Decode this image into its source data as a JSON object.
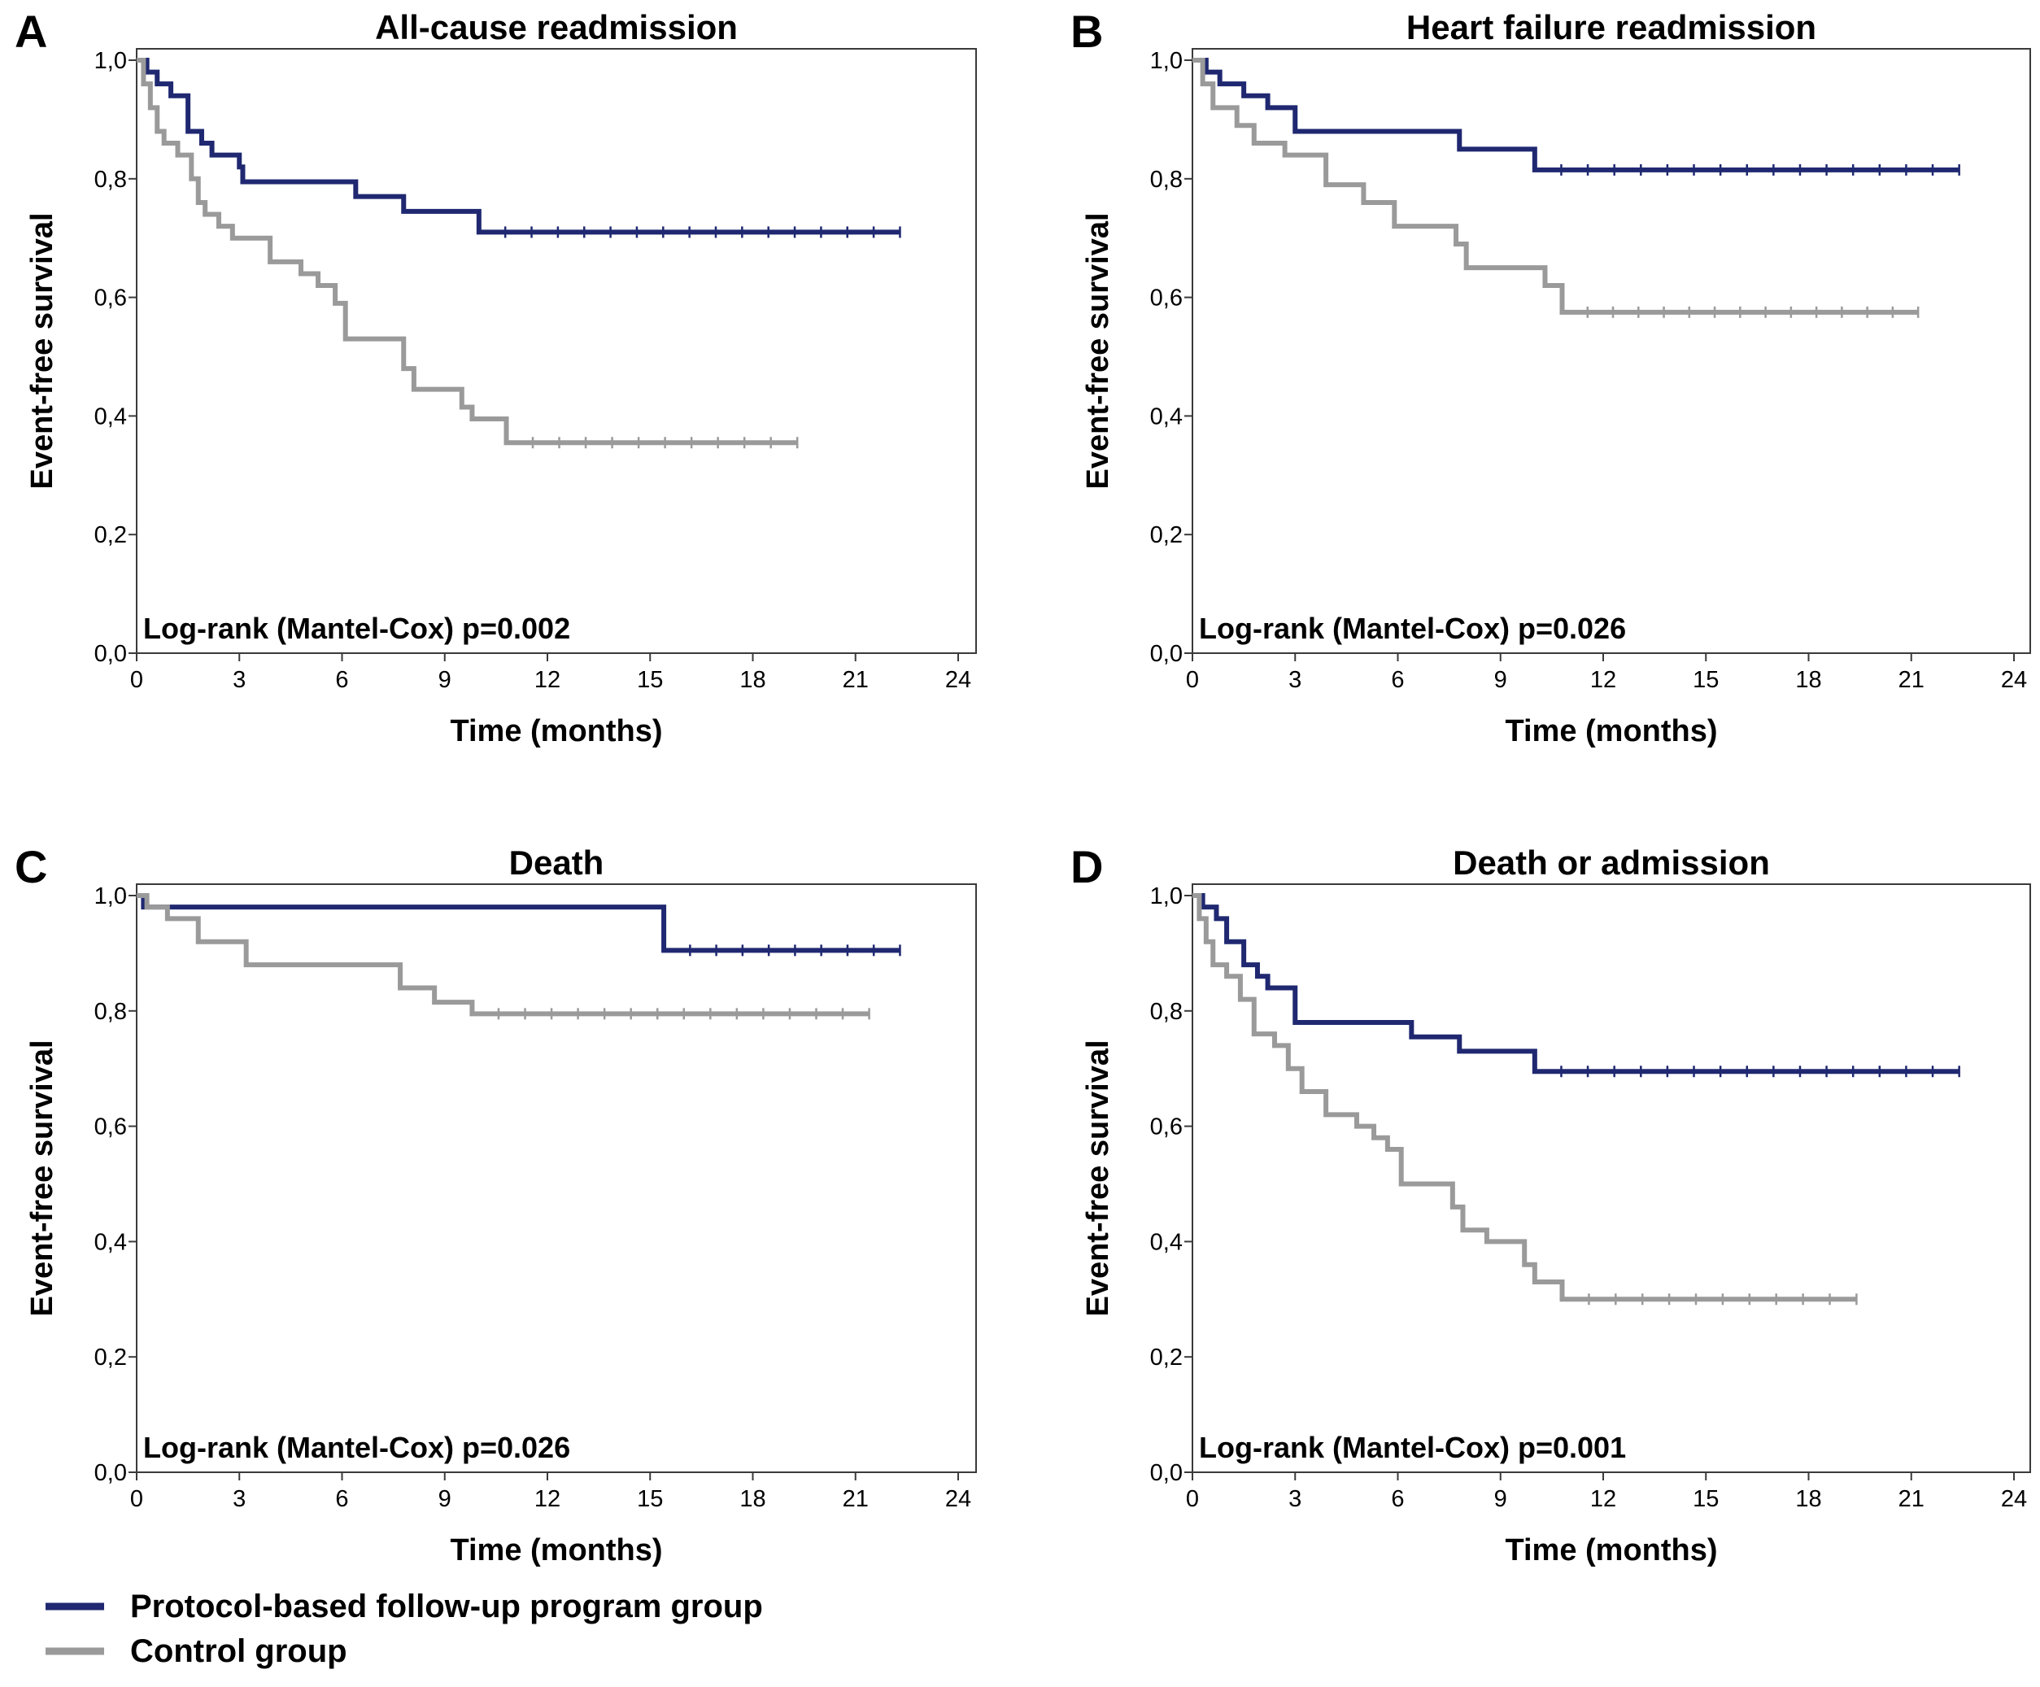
{
  "colors": {
    "protocol": "#1f2870",
    "control": "#9a9a9a"
  },
  "legend": {
    "items": [
      {
        "key": "protocol",
        "label": "Protocol-based follow-up program group"
      },
      {
        "key": "control",
        "label": "Control group"
      }
    ]
  },
  "chart_data": [
    {
      "panel": "A",
      "type": "line",
      "step": true,
      "title": "All-cause readmission",
      "xlabel": "Time (months)",
      "ylabel": "Event-free survival",
      "xlim": [
        0,
        24
      ],
      "ylim": [
        0,
        1
      ],
      "xticks": [
        "0",
        "3",
        "6",
        "9",
        "12",
        "15",
        "18",
        "21",
        "24"
      ],
      "yticks": [
        "0,0",
        "0,2",
        "0,4",
        "0,6",
        "0,8",
        "1,0"
      ],
      "annotation": "Log-rank (Mantel-Cox) p=0.002",
      "series": [
        {
          "key": "protocol",
          "x": [
            0,
            0.3,
            0.6,
            1.0,
            1.5,
            1.9,
            2.2,
            3.0,
            3.1,
            6.4,
            7.8,
            10.0,
            22.3
          ],
          "y": [
            1.0,
            0.98,
            0.96,
            0.94,
            0.88,
            0.86,
            0.84,
            0.82,
            0.795,
            0.77,
            0.745,
            0.71,
            0.71
          ]
        },
        {
          "key": "control",
          "x": [
            0,
            0.2,
            0.4,
            0.6,
            0.8,
            1.2,
            1.6,
            1.8,
            2.0,
            2.4,
            2.8,
            3.9,
            4.8,
            5.3,
            5.8,
            6.1,
            7.8,
            8.1,
            9.5,
            9.8,
            10.8,
            19.3
          ],
          "y": [
            1.0,
            0.96,
            0.92,
            0.88,
            0.86,
            0.84,
            0.8,
            0.76,
            0.74,
            0.72,
            0.7,
            0.66,
            0.64,
            0.62,
            0.59,
            0.53,
            0.48,
            0.445,
            0.415,
            0.395,
            0.355,
            0.355
          ]
        }
      ]
    },
    {
      "panel": "B",
      "type": "line",
      "step": true,
      "title": "Heart failure readmission",
      "xlabel": "Time (months)",
      "ylabel": "Event-free survival",
      "xlim": [
        0,
        24
      ],
      "ylim": [
        0,
        1
      ],
      "xticks": [
        "0",
        "3",
        "6",
        "9",
        "12",
        "15",
        "18",
        "21",
        "24"
      ],
      "yticks": [
        "0,0",
        "0,2",
        "0,4",
        "0,6",
        "0,8",
        "1,0"
      ],
      "annotation": "Log-rank (Mantel-Cox) p=0.026",
      "series": [
        {
          "key": "protocol",
          "x": [
            0,
            0.4,
            0.8,
            1.5,
            2.2,
            3.0,
            7.8,
            10.0,
            22.4
          ],
          "y": [
            1.0,
            0.98,
            0.96,
            0.94,
            0.92,
            0.88,
            0.85,
            0.815,
            0.815
          ]
        },
        {
          "key": "control",
          "x": [
            0,
            0.3,
            0.6,
            1.3,
            1.8,
            2.7,
            3.9,
            5.0,
            5.9,
            7.7,
            8.0,
            10.3,
            10.8,
            21.2
          ],
          "y": [
            1.0,
            0.96,
            0.92,
            0.89,
            0.86,
            0.84,
            0.79,
            0.76,
            0.72,
            0.69,
            0.65,
            0.62,
            0.575,
            0.575
          ]
        }
      ]
    },
    {
      "panel": "C",
      "type": "line",
      "step": true,
      "title": "Death",
      "xlabel": "Time (months)",
      "ylabel": "Event-free survival",
      "xlim": [
        0,
        24
      ],
      "ylim": [
        0,
        1
      ],
      "xticks": [
        "0",
        "3",
        "6",
        "9",
        "12",
        "15",
        "18",
        "21",
        "24"
      ],
      "yticks": [
        "0,0",
        "0,2",
        "0,4",
        "0,6",
        "0,8",
        "1,0"
      ],
      "annotation": "Log-rank (Mantel-Cox) p=0.026",
      "series": [
        {
          "key": "protocol",
          "x": [
            0,
            0.2,
            15.4,
            22.3
          ],
          "y": [
            1.0,
            0.98,
            0.905,
            0.905
          ]
        },
        {
          "key": "control",
          "x": [
            0,
            0.3,
            0.9,
            1.8,
            3.2,
            7.7,
            8.7,
            9.8,
            21.4
          ],
          "y": [
            1.0,
            0.98,
            0.96,
            0.92,
            0.88,
            0.84,
            0.815,
            0.795,
            0.795
          ]
        }
      ]
    },
    {
      "panel": "D",
      "type": "line",
      "step": true,
      "title": "Death or admission",
      "xlabel": "Time (months)",
      "ylabel": "Event-free survival",
      "xlim": [
        0,
        24
      ],
      "ylim": [
        0,
        1
      ],
      "xticks": [
        "0",
        "3",
        "6",
        "9",
        "12",
        "15",
        "18",
        "21",
        "24"
      ],
      "yticks": [
        "0,0",
        "0,2",
        "0,4",
        "0,6",
        "0,8",
        "1,0"
      ],
      "annotation": "Log-rank (Mantel-Cox) p=0.001",
      "series": [
        {
          "key": "protocol",
          "x": [
            0,
            0.3,
            0.7,
            1.0,
            1.5,
            1.9,
            2.2,
            3.0,
            6.4,
            7.8,
            10.0,
            22.4
          ],
          "y": [
            1.0,
            0.98,
            0.96,
            0.92,
            0.88,
            0.86,
            0.84,
            0.78,
            0.755,
            0.73,
            0.695,
            0.695
          ]
        },
        {
          "key": "control",
          "x": [
            0,
            0.2,
            0.4,
            0.6,
            1.0,
            1.4,
            1.8,
            2.4,
            2.8,
            3.2,
            3.9,
            4.8,
            5.3,
            5.7,
            6.1,
            7.6,
            7.9,
            8.6,
            9.7,
            10.0,
            10.8,
            19.4
          ],
          "y": [
            1.0,
            0.96,
            0.92,
            0.88,
            0.86,
            0.82,
            0.76,
            0.74,
            0.7,
            0.66,
            0.62,
            0.6,
            0.58,
            0.56,
            0.5,
            0.46,
            0.42,
            0.4,
            0.36,
            0.33,
            0.3,
            0.3
          ]
        }
      ]
    }
  ]
}
